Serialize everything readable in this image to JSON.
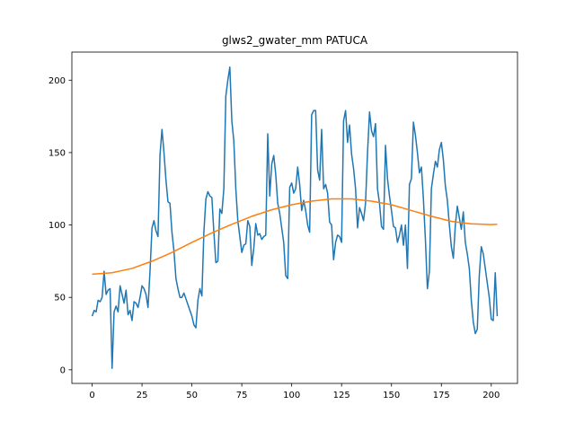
{
  "chart_data": {
    "type": "line",
    "title": "glws2_gwater_mm PATUCA",
    "x": [
      0,
      1,
      2,
      3,
      4,
      5,
      6,
      7,
      8,
      9,
      10,
      11,
      12,
      13,
      14,
      15,
      16,
      17,
      18,
      19,
      20,
      21,
      22,
      23,
      24,
      25,
      26,
      27,
      28,
      29,
      30,
      31,
      32,
      33,
      34,
      35,
      36,
      37,
      38,
      39,
      40,
      41,
      42,
      43,
      44,
      45,
      46,
      47,
      48,
      49,
      50,
      51,
      52,
      53,
      54,
      55,
      56,
      57,
      58,
      59,
      60,
      61,
      62,
      63,
      64,
      65,
      66,
      67,
      68,
      69,
      70,
      71,
      72,
      73,
      74,
      75,
      76,
      77,
      78,
      79,
      80,
      81,
      82,
      83,
      84,
      85,
      86,
      87,
      88,
      89,
      90,
      91,
      92,
      93,
      94,
      95,
      96,
      97,
      98,
      99,
      100,
      101,
      102,
      103,
      104,
      105,
      106,
      107,
      108,
      109,
      110,
      111,
      112,
      113,
      114,
      115,
      116,
      117,
      118,
      119,
      120,
      121,
      122,
      123,
      124,
      125,
      126,
      127,
      128,
      129,
      130,
      131,
      132,
      133,
      134,
      135,
      136,
      137,
      138,
      139,
      140,
      141,
      142,
      143,
      144,
      145,
      146,
      147,
      148,
      149,
      150,
      151,
      152,
      153,
      154,
      155,
      156,
      157,
      158,
      159,
      160,
      161,
      162,
      163,
      164,
      165,
      166,
      167,
      168,
      169,
      170,
      171,
      172,
      173,
      174,
      175,
      176,
      177,
      178,
      179,
      180,
      181,
      182,
      183,
      184,
      185,
      186,
      187,
      188,
      189,
      190,
      191,
      192,
      193,
      194,
      195,
      196,
      197,
      198,
      199,
      200,
      201,
      202,
      203
    ],
    "series": [
      {
        "color": "#1f77b4",
        "values": [
          37,
          41,
          40,
          48,
          47,
          50,
          68,
          52,
          55,
          56,
          1,
          40,
          44,
          40,
          58,
          52,
          46,
          55,
          38,
          41,
          34,
          47,
          46,
          43,
          50,
          58,
          56,
          52,
          43,
          68,
          98,
          103,
          96,
          92,
          148,
          166,
          150,
          131,
          116,
          115,
          95,
          82,
          63,
          56,
          50,
          50,
          53,
          49,
          45,
          41,
          37,
          31,
          29,
          48,
          56,
          51,
          95,
          118,
          123,
          120,
          119,
          95,
          74,
          75,
          111,
          108,
          125,
          189,
          200,
          209,
          172,
          158,
          125,
          103,
          92,
          81,
          86,
          87,
          103,
          99,
          72,
          84,
          101,
          93,
          94,
          90,
          92,
          93,
          163,
          120,
          142,
          148,
          135,
          115,
          108,
          98,
          88,
          65,
          63,
          126,
          129,
          122,
          125,
          140,
          128,
          110,
          117,
          110,
          100,
          95,
          176,
          179,
          179,
          138,
          131,
          166,
          125,
          128,
          122,
          102,
          100,
          76,
          88,
          93,
          92,
          88,
          172,
          179,
          157,
          169,
          149,
          139,
          125,
          98,
          112,
          108,
          103,
          115,
          150,
          178,
          165,
          161,
          170,
          125,
          115,
          99,
          97,
          155,
          132,
          120,
          110,
          99,
          98,
          88,
          93,
          100,
          86,
          100,
          70,
          128,
          132,
          171,
          162,
          150,
          136,
          140,
          118,
          90,
          56,
          68,
          125,
          135,
          144,
          140,
          152,
          157,
          145,
          127,
          117,
          100,
          85,
          77,
          100,
          113,
          105,
          97,
          109,
          88,
          80,
          70,
          48,
          33,
          25,
          28,
          65,
          85,
          80,
          70,
          60,
          50,
          35,
          34,
          67,
          37
        ]
      },
      {
        "color": "#ff7f0e",
        "x": [
          0,
          10,
          20,
          30,
          40,
          50,
          60,
          70,
          80,
          90,
          100,
          110,
          120,
          130,
          140,
          150,
          160,
          170,
          180,
          190,
          200,
          203
        ],
        "values": [
          66,
          67,
          70,
          75,
          81,
          88,
          94.5,
          100.5,
          106,
          110.5,
          114,
          116.5,
          118,
          118,
          116.5,
          114,
          110,
          106,
          102.5,
          100.8,
          100.3,
          100.5
        ]
      }
    ],
    "xlim": [
      -10.15,
      213.15
    ],
    "ylim": [
      -9.4,
      219.4
    ],
    "xticks": [
      0,
      25,
      50,
      75,
      100,
      125,
      150,
      175,
      200
    ],
    "yticks": [
      0,
      50,
      100,
      150,
      200
    ]
  }
}
